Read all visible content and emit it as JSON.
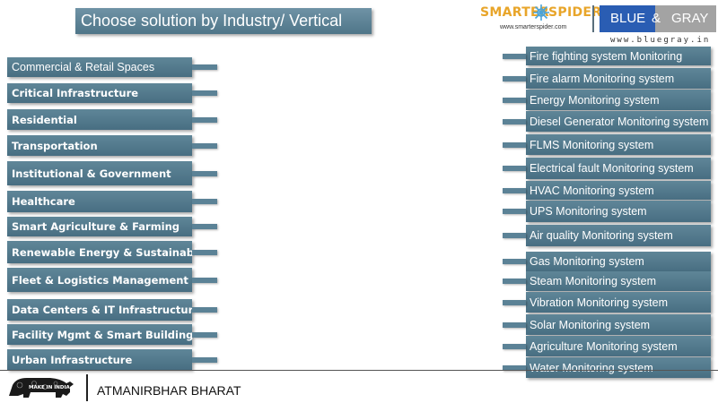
{
  "header": {
    "title": "Choose solution by Industry/ Vertical",
    "smarter_spider_left": "SMARTER",
    "smarter_spider_right": "SPIDER",
    "smarter_spider_url": "www.smarterspider.com",
    "bluegray_left": "BLUE",
    "bluegray_amp": "&",
    "bluegray_right": "GRAY",
    "bluegray_url": "www.bluegray.in"
  },
  "industries": [
    "Commercial & Retail Spaces",
    "Critical Infrastructure",
    "Residential",
    "Transportation",
    "Institutional & Government",
    "Healthcare",
    "Smart Agriculture & Farming",
    "Renewable Energy & Sustainability",
    "Fleet & Logistics Management",
    "Data Centers & IT Infrastructure",
    "Facility Mgmt & Smart Buildings",
    "Urban Infrastructure"
  ],
  "solutions": [
    "Fire fighting system Monitoring",
    "Fire alarm Monitoring system",
    "Energy Monitoring system",
    "Diesel Generator Monitoring system",
    "FLMS Monitoring system",
    "Electrical fault Monitoring system",
    "HVAC Monitoring system",
    "UPS Monitoring system",
    "Air quality Monitoring system",
    "Gas Monitoring system",
    "Steam Monitoring system",
    "Vibration Monitoring system",
    "Solar Monitoring system",
    "Agriculture Monitoring system",
    "Water Monitoring system"
  ],
  "footer": {
    "make_in_india": "MAKE IN INDIA",
    "tagline": "ATMANIRBHAR BHARAT"
  },
  "colors": {
    "button": "#547b8e",
    "title_bg": "#5f8699",
    "brand_orange": "#e8a52a",
    "brand_blue": "#2a5db3",
    "brand_gray": "#a3a3a3"
  }
}
